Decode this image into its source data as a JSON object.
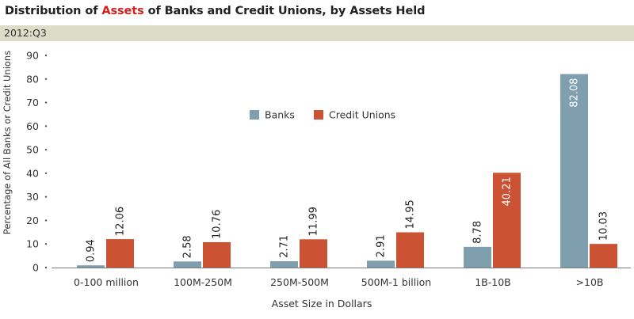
{
  "header": {
    "title_pre": "Distribution of ",
    "title_highlight": "Assets",
    "title_post": " of Banks and Credit Unions, by Assets Held",
    "period": "2012:Q3"
  },
  "colors": {
    "banks": "#7f9fae",
    "credit_unions": "#cb5232",
    "title_highlight": "#d21f1b",
    "period_bar": "#dcdcc8"
  },
  "chart_data": {
    "type": "bar",
    "title": "Distribution of Assets of Banks and Credit Unions, by Assets Held",
    "xlabel": "Asset Size in Dollars",
    "ylabel": "Percentage of All Banks or Credit Unions",
    "ylim": [
      0,
      90
    ],
    "yticks": [
      0,
      10,
      20,
      30,
      40,
      50,
      60,
      70,
      80,
      90
    ],
    "categories": [
      "0-100 million",
      "100M-250M",
      "250M-500M",
      "500M-1 billion",
      "1B-10B",
      ">10B"
    ],
    "series": [
      {
        "name": "Banks",
        "values": [
          0.94,
          2.58,
          2.71,
          2.91,
          8.78,
          82.08
        ],
        "labels": [
          "0.94",
          "2.58",
          "2.71",
          "2.91",
          "8.78",
          "82.08"
        ]
      },
      {
        "name": "Credit Unions",
        "values": [
          12.06,
          10.76,
          11.99,
          14.95,
          40.21,
          10.03
        ],
        "labels": [
          "12.06",
          "10.76",
          "11.99",
          "14.95",
          "40.21",
          "10.03"
        ]
      }
    ],
    "grid": false,
    "legend_position": "top-center"
  }
}
